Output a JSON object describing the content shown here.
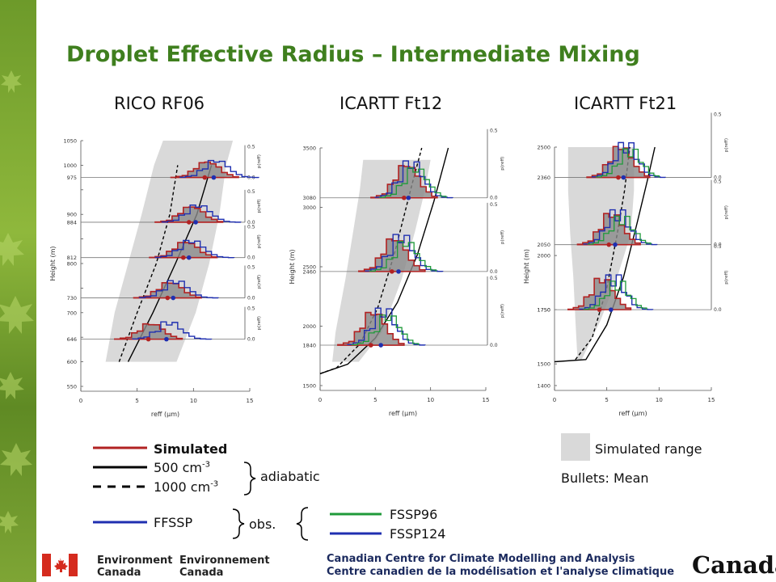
{
  "slide_title": "Droplet Effective Radius – Intermediate Mixing",
  "legend": {
    "simulated": "Simulated",
    "adiabatic_500": "500 cm",
    "adiabatic_1000": "1000 cm",
    "exponent": "-3",
    "adiabatic_label": "adiabatic",
    "ffssp": "FFSSP",
    "obs_label": "obs.",
    "fssp96": "FSSP96",
    "fssp124": "FSSP124",
    "simulated_range": "Simulated range",
    "bullets": "Bullets: Mean"
  },
  "footer": {
    "env_en_1": "Environment",
    "env_en_2": "Canada",
    "env_fr_1": "Environnement",
    "env_fr_2": "Canada",
    "centre_en": "Canadian Centre for Climate Modelling and Analysis",
    "centre_fr": "Centre canadien de la modélisation et l'analyse climatique",
    "wordmark": "Canada"
  },
  "colors": {
    "title_green": "#3f7f1e",
    "simulated": "#b22222",
    "ffssp": "#1f2fb0",
    "fssp96": "#1f9a3a",
    "fssp124": "#1f2fb0",
    "range": "#d9d9d9",
    "adiabatic": "#000000"
  },
  "chart_data": [
    {
      "type": "line",
      "title": "RICO RF06",
      "xlabel": "reff (μm)",
      "ylabel": "Height (m)",
      "xlim": [
        0,
        15
      ],
      "ylim": [
        550,
        1050
      ],
      "xticks": [
        0,
        5,
        10,
        15
      ],
      "yticks": [
        550,
        600,
        650,
        700,
        750,
        800,
        850,
        900,
        950,
        1000,
        1050
      ],
      "ytick_labels": [
        "550",
        "600",
        "",
        "700",
        "",
        "800",
        "",
        "900",
        "",
        "1000",
        "1050"
      ],
      "pdf_levels": [
        975,
        884,
        812,
        730,
        646
      ],
      "pdf_scale_max": 0.5,
      "pdf_axis_label": "p(reff)",
      "adiabatic_500": {
        "x": [
          4.2,
          6.4,
          8.4,
          10.3,
          11.6
        ],
        "y": [
          600,
          700,
          800,
          900,
          1000
        ]
      },
      "adiabatic_1000": {
        "x": [
          3.4,
          5.0,
          6.7,
          7.9,
          8.6
        ],
        "y": [
          600,
          700,
          800,
          900,
          1000
        ]
      },
      "range_left": {
        "x": [
          2.2,
          3.0,
          4.2,
          5.4,
          6.5,
          7.3
        ],
        "y": [
          600,
          700,
          800,
          900,
          1000,
          1050
        ]
      },
      "range_right": {
        "x": [
          8.5,
          10.2,
          11.4,
          12.3,
          12.9,
          13.5
        ],
        "y": [
          600,
          700,
          800,
          900,
          1000,
          1050
        ]
      },
      "means": [
        {
          "level": 975,
          "simulated": 11.0,
          "observed": 11.8
        },
        {
          "level": 884,
          "simulated": 9.6,
          "observed": 10.2
        },
        {
          "level": 812,
          "simulated": 9.1,
          "observed": 9.6
        },
        {
          "level": 730,
          "simulated": 7.7,
          "observed": 8.2
        },
        {
          "level": 646,
          "simulated": 6.0,
          "observed": 7.6
        }
      ]
    },
    {
      "type": "line",
      "title": "ICARTT Ft12",
      "xlabel": "reff (μm)",
      "ylabel": "Height (m)",
      "xlim": [
        0,
        15
      ],
      "ylim": [
        1500,
        3500
      ],
      "xticks": [
        0,
        5,
        10,
        15
      ],
      "yticks": [
        1500,
        2000,
        2500,
        3000,
        3500
      ],
      "ytick_labels": [
        "1500",
        "2000",
        "2500",
        "3000",
        "3500"
      ],
      "pdf_levels": [
        3080,
        2460,
        1840
      ],
      "pdf_scale_max": 0.5,
      "pdf_axis_label": "p(reff)",
      "adiabatic_500": {
        "x": [
          0,
          2.5,
          5.0,
          7.0,
          8.8,
          10.3,
          11.6
        ],
        "y": [
          1600,
          1680,
          1900,
          2200,
          2600,
          3050,
          3500
        ]
      },
      "adiabatic_1000": {
        "x": [
          0,
          1.5,
          3.6,
          5.2,
          6.7,
          8.2,
          9.2
        ],
        "y": [
          1600,
          1650,
          1850,
          2150,
          2600,
          3150,
          3500
        ]
      },
      "range_left": {
        "x": [
          1.1,
          1.4,
          2.3,
          3.0,
          3.6,
          3.9
        ],
        "y": [
          1700,
          1950,
          2400,
          2800,
          3150,
          3400
        ]
      },
      "range_right": {
        "x": [
          3.5,
          5.6,
          7.4,
          8.6,
          9.5,
          10.0
        ],
        "y": [
          1700,
          1950,
          2400,
          2800,
          3150,
          3400
        ]
      },
      "means": [
        {
          "level": 3080,
          "simulated": 7.6,
          "observed": 8.0
        },
        {
          "level": 2460,
          "simulated": 6.5,
          "observed": 7.1
        },
        {
          "level": 1840,
          "simulated": 4.6,
          "observed": 5.5
        }
      ]
    },
    {
      "type": "line",
      "title": "ICARTT Ft21",
      "xlabel": "reff (μm)",
      "ylabel": "Height (m)",
      "xlim": [
        0,
        15
      ],
      "ylim": [
        1400,
        2500
      ],
      "xticks": [
        0,
        5,
        10,
        15
      ],
      "yticks": [
        1400,
        1500,
        1750,
        2000,
        2500
      ],
      "ytick_labels": [
        "1400",
        "1500",
        "1750",
        "2000",
        "2500"
      ],
      "pdf_levels": [
        2360,
        2050,
        1750
      ],
      "pdf_scale_max": 0.5,
      "pdf_axis_label": "p(reff)",
      "adiabatic_500": {
        "x": [
          0,
          3.0,
          5.0,
          6.6,
          7.9,
          8.9,
          9.6
        ],
        "y": [
          1510,
          1520,
          1680,
          1900,
          2150,
          2350,
          2500
        ]
      },
      "adiabatic_1000": {
        "x": [
          2.0,
          3.6,
          5.0,
          6.0,
          6.7,
          7.2
        ],
        "y": [
          1520,
          1620,
          1850,
          2100,
          2300,
          2500
        ]
      },
      "range_left": {
        "x": [
          2.2,
          2.0,
          1.8,
          1.5,
          1.3,
          1.3
        ],
        "y": [
          1520,
          1700,
          1900,
          2100,
          2300,
          2500
        ]
      },
      "range_right": {
        "x": [
          2.6,
          4.4,
          6.0,
          7.3,
          7.6,
          7.6
        ],
        "y": [
          1520,
          1700,
          1900,
          2100,
          2300,
          2500
        ]
      },
      "means": [
        {
          "level": 2360,
          "simulated": 6.1,
          "observed": 6.6
        },
        {
          "level": 2050,
          "simulated": 5.2,
          "observed": 5.8
        },
        {
          "level": 1750,
          "simulated": 4.3,
          "observed": 5.4
        }
      ]
    }
  ]
}
